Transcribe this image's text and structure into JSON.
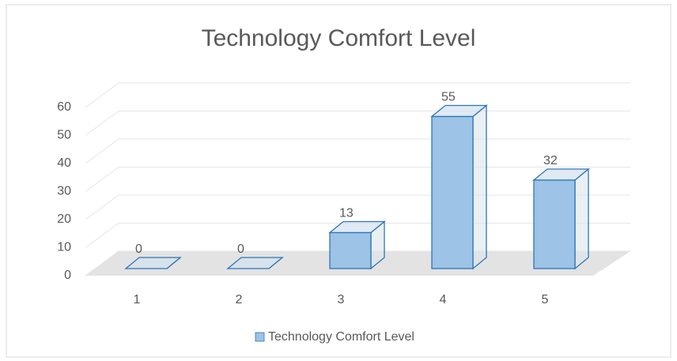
{
  "chart_data": {
    "type": "bar",
    "title": "Technology Comfort Level",
    "categories": [
      "1",
      "2",
      "3",
      "4",
      "5"
    ],
    "series": [
      {
        "name": "Technology Comfort Level",
        "color": "#9dc3e6",
        "values": [
          0,
          0,
          13,
          55,
          32
        ]
      }
    ],
    "ylim": [
      0,
      60
    ],
    "yticks": [
      0,
      10,
      20,
      30,
      40,
      50,
      60
    ],
    "grid": true,
    "legend": "bottom"
  }
}
